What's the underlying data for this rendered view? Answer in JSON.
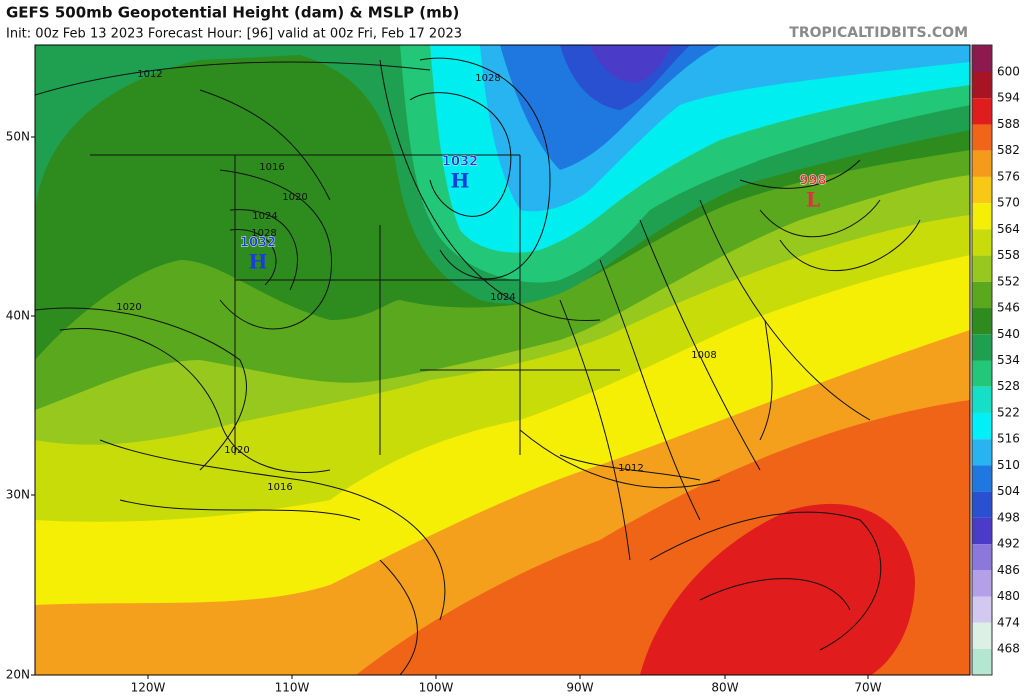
{
  "header": {
    "title": "GEFS 500mb Geopotential Height (dam) & MSLP (mb)",
    "subtitle": "Init: 00z Feb 13 2023   Forecast Hour: [96]   valid at 00z Fri, Feb 17 2023",
    "watermark": "TROPICALTIDBITS.COM"
  },
  "colorbar": {
    "labels": [
      "600",
      "594",
      "588",
      "582",
      "576",
      "570",
      "564",
      "558",
      "552",
      "546",
      "540",
      "534",
      "528",
      "522",
      "516",
      "510",
      "504",
      "498",
      "492",
      "486",
      "480",
      "474",
      "468"
    ]
  },
  "axes": {
    "lat_labels": [
      "50N",
      "40N",
      "30N",
      "20N"
    ],
    "lon_labels": [
      "120W",
      "110W",
      "100W",
      "90W",
      "80W",
      "70W"
    ]
  },
  "pressure_centers": [
    {
      "value": "1032",
      "letter": "H"
    },
    {
      "value": "1032",
      "letter": "H"
    },
    {
      "value": "998",
      "letter": "L"
    }
  ],
  "isobar_labels": [
    "1012",
    "1028",
    "1016",
    "1020",
    "1024",
    "1028",
    "1020",
    "1024",
    "1008",
    "1020",
    "1016",
    "1012"
  ]
}
